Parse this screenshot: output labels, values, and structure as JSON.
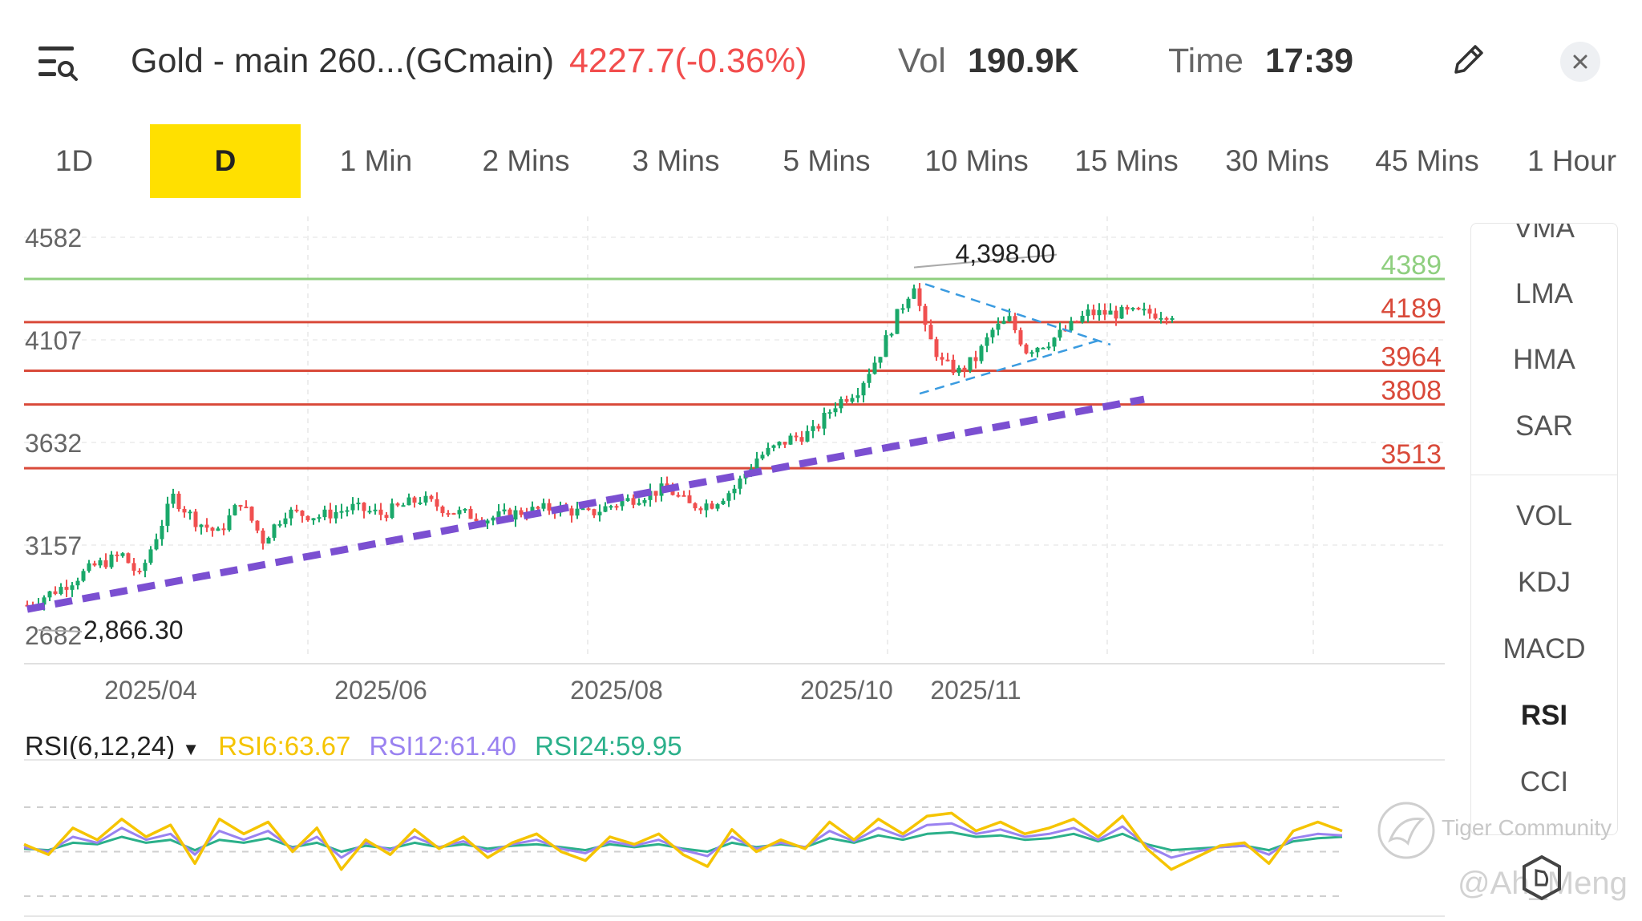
{
  "header": {
    "title": "Gold - main 260...(GCmain)",
    "price_change": "4227.7(-0.36%)",
    "vol_label": "Vol",
    "vol_value": "190.9K",
    "time_label": "Time",
    "time_value": "17:39",
    "price_color": "#f24d4d"
  },
  "tabs": [
    {
      "label": "1D",
      "active": false
    },
    {
      "label": "D",
      "active": true
    },
    {
      "label": "1 Min",
      "active": false
    },
    {
      "label": "2 Mins",
      "active": false
    },
    {
      "label": "3 Mins",
      "active": false
    },
    {
      "label": "5 Mins",
      "active": false
    },
    {
      "label": "10 Mins",
      "active": false
    },
    {
      "label": "15 Mins",
      "active": false
    },
    {
      "label": "30 Mins",
      "active": false
    },
    {
      "label": "45 Mins",
      "active": false
    },
    {
      "label": "1 Hour",
      "active": false
    }
  ],
  "side_panel": {
    "main_indicators": [
      "VMA",
      "LMA",
      "HMA",
      "SAR"
    ],
    "sub_indicators": [
      "VOL",
      "KDJ",
      "MACD",
      "RSI",
      "CCI"
    ],
    "selected_sub": "RSI"
  },
  "rsi": {
    "name": "RSI(6,12,24)",
    "rsi6_label": "RSI6:63.67",
    "rsi12_label": "RSI12:61.40",
    "rsi24_label": "RSI24:59.95",
    "rsi6_color": "#f5c400",
    "rsi12_color": "#9a82f0",
    "rsi24_color": "#2bb08a"
  },
  "watermark": {
    "brand": "Tiger Community",
    "user": "@Ah_Meng"
  },
  "chart_data": {
    "type": "candlestick",
    "y_ticks": [
      4582,
      4107,
      3632,
      3157,
      2682
    ],
    "y_tick_labels": [
      "4582",
      "4107",
      "3632",
      "3157",
      "2682"
    ],
    "ylim": [
      2682,
      4582
    ],
    "x_tick_labels": [
      "2025/04",
      "2025/06",
      "2025/08",
      "2025/10",
      "2025/11"
    ],
    "x_tick_positions": [
      22,
      63,
      105,
      146,
      169
    ],
    "num_candles": 205,
    "high_annotation": {
      "label": "4,398.00",
      "value": 4398,
      "index": 158
    },
    "low_annotation": {
      "label": "2,866.30",
      "value": 2866.3,
      "index": 2
    },
    "horizontal_levels": [
      {
        "value": 4389,
        "label": "4389",
        "color": "#8fcf7f"
      },
      {
        "value": 4189,
        "label": "4189",
        "color": "#d94a3a"
      },
      {
        "value": 3964,
        "label": "3964",
        "color": "#d94a3a"
      },
      {
        "value": 3808,
        "label": "3808",
        "color": "#d94a3a"
      },
      {
        "value": 3513,
        "label": "3513",
        "color": "#d94a3a"
      }
    ],
    "trendline": {
      "color": "#7b4fd1",
      "start": {
        "index": 0,
        "value": 2860
      },
      "end": {
        "index": 199,
        "value": 3832
      }
    },
    "triangle_upper": {
      "color": "#3a9be0",
      "start": {
        "index": 160,
        "value": 4365
      },
      "end": {
        "index": 193,
        "value": 4085
      }
    },
    "triangle_lower": {
      "color": "#3a9be0",
      "start": {
        "index": 159,
        "value": 3858
      },
      "end": {
        "index": 191,
        "value": 4105
      }
    },
    "up_color": "#1aa86a",
    "down_color": "#f05050",
    "price_path": [
      [
        0,
        2880
      ],
      [
        6,
        2960
      ],
      [
        12,
        3060
      ],
      [
        17,
        3110
      ],
      [
        20,
        3010
      ],
      [
        22,
        3140
      ],
      [
        26,
        3380
      ],
      [
        30,
        3270
      ],
      [
        34,
        3210
      ],
      [
        38,
        3360
      ],
      [
        42,
        3180
      ],
      [
        46,
        3310
      ],
      [
        52,
        3290
      ],
      [
        58,
        3330
      ],
      [
        63,
        3300
      ],
      [
        70,
        3370
      ],
      [
        76,
        3310
      ],
      [
        82,
        3280
      ],
      [
        88,
        3310
      ],
      [
        94,
        3330
      ],
      [
        100,
        3300
      ],
      [
        104,
        3340
      ],
      [
        110,
        3390
      ],
      [
        114,
        3420
      ],
      [
        118,
        3340
      ],
      [
        122,
        3350
      ],
      [
        126,
        3420
      ],
      [
        130,
        3560
      ],
      [
        136,
        3650
      ],
      [
        140,
        3680
      ],
      [
        144,
        3810
      ],
      [
        148,
        3880
      ],
      [
        152,
        4050
      ],
      [
        155,
        4220
      ],
      [
        158,
        4370
      ],
      [
        160,
        4150
      ],
      [
        163,
        4000
      ],
      [
        166,
        3960
      ],
      [
        169,
        4020
      ],
      [
        172,
        4150
      ],
      [
        175,
        4200
      ],
      [
        178,
        4060
      ],
      [
        182,
        4100
      ],
      [
        185,
        4150
      ],
      [
        189,
        4230
      ],
      [
        193,
        4230
      ]
    ],
    "rsi_series": {
      "rsi6": [
        55,
        48,
        66,
        58,
        72,
        60,
        68,
        42,
        72,
        62,
        70,
        50,
        66,
        38,
        58,
        48,
        65,
        52,
        60,
        46,
        56,
        62,
        50,
        44,
        60,
        55,
        62,
        48,
        40,
        65,
        50,
        58,
        52,
        70,
        58,
        72,
        62,
        74,
        76,
        64,
        70,
        62,
        66,
        72,
        60,
        74,
        52,
        38,
        46,
        54,
        56,
        42,
        64,
        70,
        64
      ],
      "rsi12": [
        53,
        50,
        60,
        56,
        66,
        58,
        62,
        48,
        64,
        58,
        64,
        52,
        60,
        46,
        56,
        51,
        60,
        53,
        57,
        50,
        55,
        58,
        52,
        49,
        57,
        54,
        58,
        51,
        47,
        60,
        52,
        56,
        53,
        64,
        57,
        66,
        60,
        68,
        69,
        62,
        65,
        60,
        62,
        66,
        58,
        67,
        54,
        46,
        50,
        53,
        54,
        48,
        59,
        62,
        61
      ],
      "rsi24": [
        52,
        51,
        56,
        55,
        60,
        56,
        58,
        51,
        58,
        56,
        59,
        53,
        56,
        50,
        54,
        52,
        56,
        53,
        55,
        52,
        54,
        55,
        53,
        51,
        55,
        53,
        55,
        52,
        50,
        56,
        53,
        55,
        53,
        59,
        56,
        61,
        58,
        62,
        63,
        60,
        61,
        58,
        59,
        62,
        57,
        62,
        55,
        51,
        52,
        53,
        54,
        51,
        57,
        59,
        60
      ]
    },
    "rsi_levels": [
      80,
      50,
      20
    ]
  }
}
